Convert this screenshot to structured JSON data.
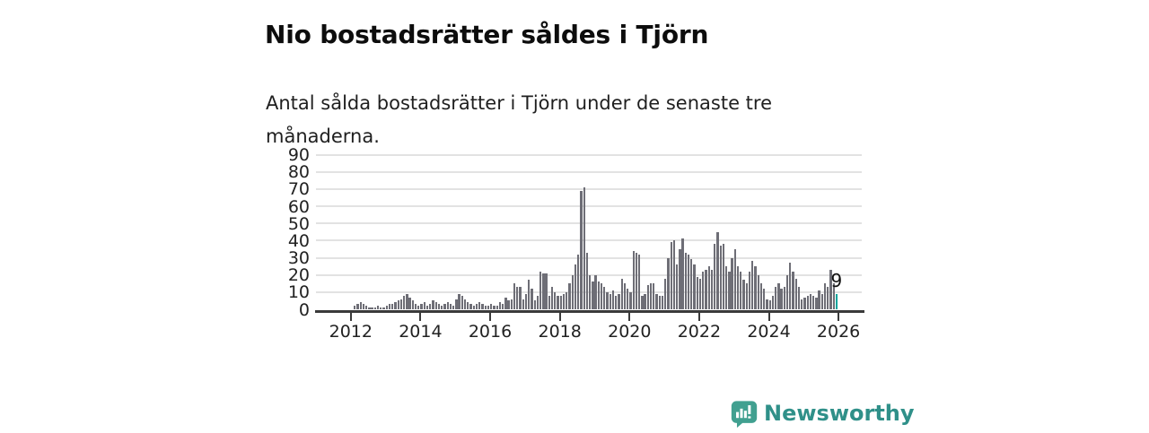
{
  "header": {
    "title": "Nio bostadsrätter såldes i Tjörn",
    "subtitle": "Antal sålda bostadsrätter i Tjörn under de senaste tre månaderna."
  },
  "chart_data": {
    "type": "bar",
    "title": "Nio bostadsrätter såldes i Tjörn",
    "xlabel": "",
    "ylabel": "",
    "start_year": 2011,
    "start_month": 1,
    "frequency": "monthly",
    "values": [
      0,
      0,
      0,
      0,
      0,
      0,
      0,
      0,
      0,
      0,
      0,
      0,
      0,
      2,
      3,
      4,
      3,
      2,
      1,
      1,
      1,
      2,
      1,
      1,
      2,
      3,
      3,
      4,
      5,
      6,
      8,
      9,
      7,
      5,
      3,
      2,
      3,
      4,
      2,
      3,
      5,
      4,
      3,
      2,
      3,
      4,
      3,
      2,
      6,
      9,
      8,
      6,
      4,
      3,
      2,
      3,
      4,
      3,
      2,
      2,
      3,
      2,
      2,
      4,
      3,
      7,
      5,
      6,
      15,
      13,
      13,
      6,
      9,
      17,
      12,
      5,
      8,
      22,
      21,
      21,
      8,
      13,
      10,
      8,
      8,
      9,
      10,
      15,
      20,
      26,
      32,
      69,
      71,
      33,
      20,
      16,
      20,
      16,
      15,
      13,
      10,
      9,
      11,
      8,
      9,
      18,
      15,
      12,
      10,
      34,
      33,
      32,
      8,
      9,
      14,
      15,
      15,
      9,
      8,
      8,
      18,
      30,
      39,
      40,
      26,
      35,
      41,
      33,
      32,
      29,
      26,
      19,
      18,
      22,
      23,
      25,
      23,
      38,
      45,
      37,
      38,
      25,
      22,
      30,
      35,
      25,
      22,
      17,
      15,
      22,
      28,
      25,
      20,
      15,
      12,
      6,
      5,
      8,
      13,
      15,
      12,
      13,
      20,
      27,
      22,
      18,
      13,
      6,
      7,
      8,
      9,
      8,
      7,
      11,
      9,
      15,
      13,
      23,
      15,
      9
    ],
    "ylim": [
      0,
      90
    ],
    "yticks": [
      0,
      10,
      20,
      30,
      40,
      50,
      60,
      70,
      80,
      90
    ],
    "xtick_years": [
      2012,
      2014,
      2016,
      2018,
      2020,
      2022,
      2024,
      2026
    ],
    "grid": true,
    "legend": "none",
    "highlight": {
      "index": 179,
      "value": 9,
      "label": "9"
    }
  },
  "colors": {
    "bar": "#6e6e76",
    "highlight": "#00a49c",
    "grid": "#e2e2e2",
    "axis": "#3a3a3a",
    "brand": "#2f9089",
    "logo_bubble": "#41a090"
  },
  "footer": {
    "brand": "Newsworthy"
  }
}
